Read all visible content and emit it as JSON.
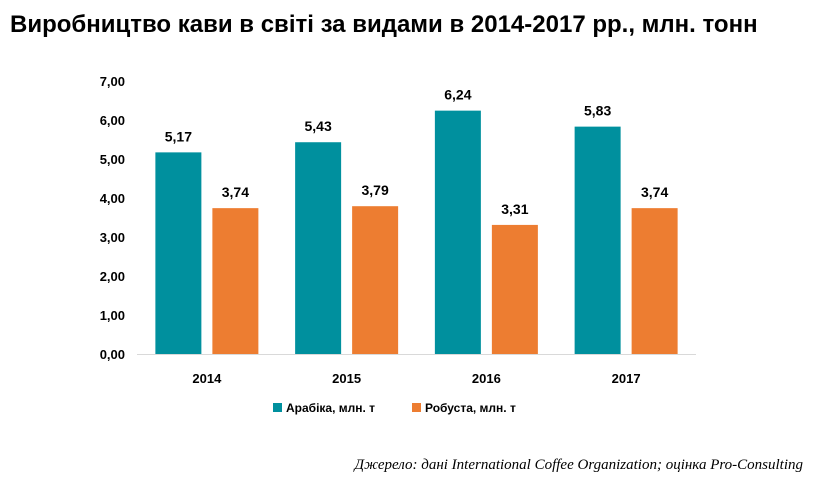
{
  "chart_data": {
    "type": "bar",
    "title": "Виробництво кави в світі за видами в 2014-2017 рр., млн. тонн",
    "categories": [
      "2014",
      "2015",
      "2016",
      "2017"
    ],
    "series": [
      {
        "name": "Арабіка, млн. т",
        "color": "#00909E",
        "values": [
          5.17,
          5.43,
          6.24,
          5.83
        ],
        "value_labels": [
          "5,17",
          "5,43",
          "6,24",
          "5,83"
        ]
      },
      {
        "name": "Робуста, млн. т",
        "color": "#ED7D31",
        "values": [
          3.74,
          3.79,
          3.31,
          3.74
        ],
        "value_labels": [
          "3,74",
          "3,79",
          "3,31",
          "3,74"
        ]
      }
    ],
    "ylim": [
      0,
      7
    ],
    "yticks": [
      0,
      1,
      2,
      3,
      4,
      5,
      6,
      7
    ],
    "ytick_labels": [
      "0,00",
      "1,00",
      "2,00",
      "3,00",
      "4,00",
      "5,00",
      "6,00",
      "7,00"
    ],
    "xlabel": "",
    "ylabel": "",
    "grid": false,
    "legend": "bottom"
  },
  "source": "Джерело: дані International Coffee Organization; оцінка Pro-Consulting"
}
